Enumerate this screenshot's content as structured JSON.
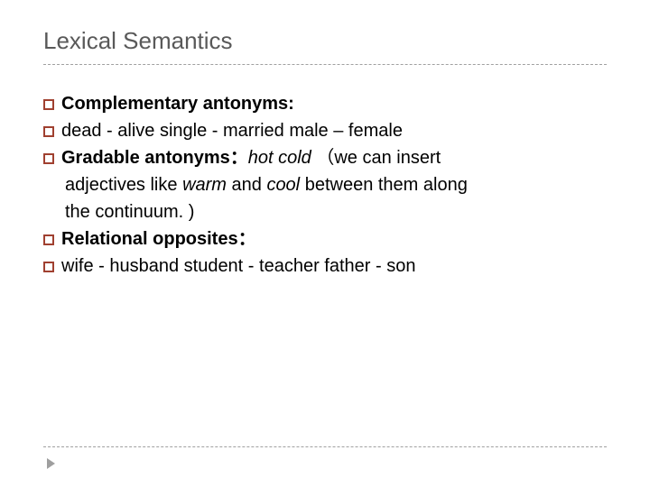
{
  "title": "Lexical Semantics",
  "bullet_color": "#a04030",
  "divider_color": "#a0a0a0",
  "title_color": "#595959",
  "body_color": "#000000",
  "title_fontsize": 26,
  "body_fontsize": 20,
  "lines": {
    "l1_bold": "Complementary antonyms:",
    "l2_text": "dead - alive    single - married    male – female",
    "l3_bold": "Gradable antonyms：",
    "l3_italic1": "hot",
    "l3_mid": "  ",
    "l3_italic2": "cold",
    "l3_tail": "  （we can insert",
    "l4_pre": "adjectives like ",
    "l4_italic1": "warm",
    "l4_mid": " and ",
    "l4_italic2": "cool",
    "l4_tail": " between them along",
    "l5_text": "the continuum. )",
    "l6_bold": "Relational opposites：",
    "l7_text": "wife - husband    student - teacher    father - son"
  }
}
